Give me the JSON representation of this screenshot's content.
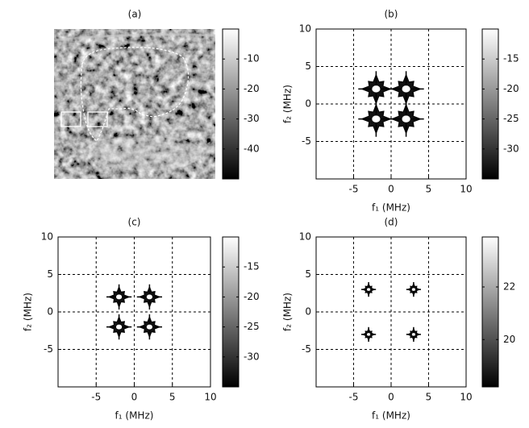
{
  "chart_data": [
    {
      "type": "image",
      "title": "(a)",
      "colormap": "gray",
      "colorbar_lim": [
        -50,
        0
      ],
      "colorbar_ticks": [
        -10,
        -20,
        -30,
        -40
      ]
    },
    {
      "type": "contour",
      "title": "(b)",
      "xlabel": "f₁ (MHz)",
      "ylabel": "f₂ (MHz)",
      "xlim": [
        -10,
        10
      ],
      "ylim": [
        -10,
        10
      ],
      "xticks": [
        -5,
        0,
        5,
        10
      ],
      "yticks": [
        -5,
        0,
        5,
        10
      ],
      "grid": true,
      "colorbar_lim": [
        -35,
        -10
      ],
      "colorbar_ticks": [
        -15,
        -20,
        -25,
        -30
      ],
      "peaks": {
        "x": [
          -2,
          2,
          -2,
          2
        ],
        "y": [
          2,
          2,
          -2,
          -2
        ]
      }
    },
    {
      "type": "contour",
      "title": "(c)",
      "xlabel": "f₁ (MHz)",
      "ylabel": "f₂ (MHz)",
      "xlim": [
        -10,
        10
      ],
      "ylim": [
        -10,
        10
      ],
      "xticks": [
        -5,
        0,
        5,
        10
      ],
      "yticks": [
        -5,
        0,
        5,
        10
      ],
      "grid": true,
      "colorbar_lim": [
        -35,
        -10
      ],
      "colorbar_ticks": [
        -15,
        -20,
        -25,
        -30
      ],
      "peaks": {
        "x": [
          -2,
          2,
          -2,
          2
        ],
        "y": [
          2,
          2,
          -2,
          -2
        ]
      }
    },
    {
      "type": "contour",
      "title": "(d)",
      "xlabel": "f₁ (MHz)",
      "ylabel": "f₂ (MHz)",
      "xlim": [
        -10,
        10
      ],
      "ylim": [
        -10,
        10
      ],
      "xticks": [
        -5,
        0,
        5,
        10
      ],
      "yticks": [
        -5,
        0,
        5,
        10
      ],
      "grid": true,
      "colorbar_lim": [
        18.2,
        23.9
      ],
      "colorbar_ticks": [
        22,
        20
      ],
      "peaks": {
        "x": [
          -3,
          3,
          -3,
          3
        ],
        "y": [
          3,
          3,
          -3,
          -3
        ]
      }
    }
  ]
}
